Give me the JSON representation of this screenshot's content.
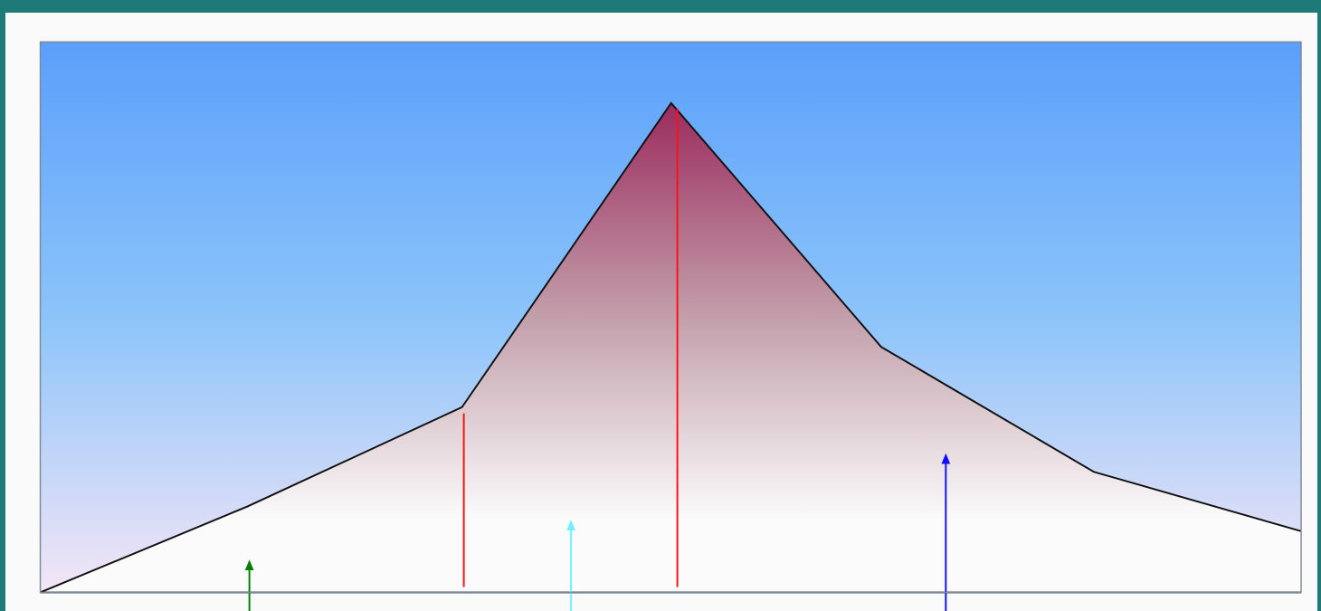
{
  "colors": {
    "frame": "#1e7a78",
    "sky_top": "#5b9ffb",
    "sky_mid": "#8cc4fa",
    "sky_bottom": "#f4e6f6",
    "peak_fill_top": "#9b2b5e",
    "peak_fill_mid": "#c4a2ad",
    "peak_fill_bottom": "#fbfbfb",
    "outline": "#111111",
    "red_line": "#ff1010",
    "green_arrow": "#008000",
    "cyan_arrow": "#6ff0ff",
    "blue_arrow": "#1010ff"
  },
  "diagram": {
    "profile_shape": "mountain-peak",
    "vertical_markers": [
      {
        "name": "left-marker",
        "color": "red_line",
        "style": "line"
      },
      {
        "name": "peak-marker",
        "color": "red_line",
        "style": "line"
      }
    ],
    "arrows": [
      {
        "name": "green-arrow",
        "color": "green_arrow",
        "direction": "up"
      },
      {
        "name": "cyan-arrow",
        "color": "cyan_arrow",
        "direction": "up"
      },
      {
        "name": "blue-arrow",
        "color": "blue_arrow",
        "direction": "up"
      }
    ]
  }
}
